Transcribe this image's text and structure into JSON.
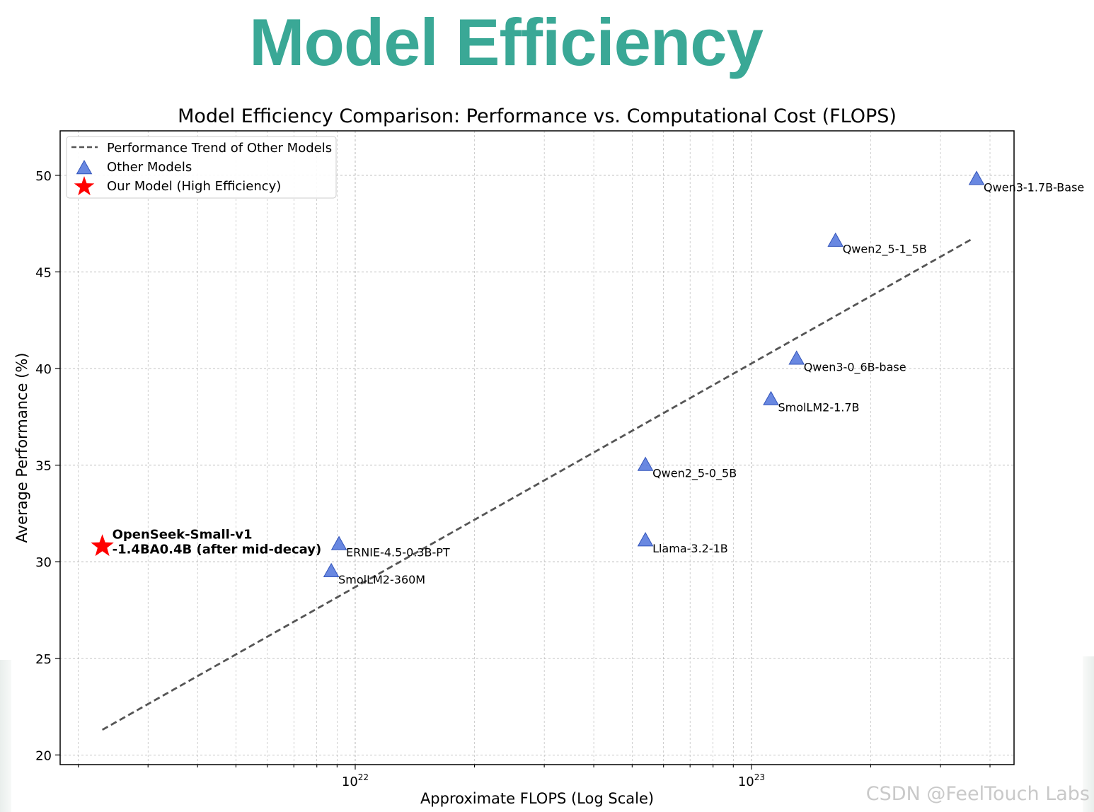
{
  "slide": {
    "title": "Model Efficiency",
    "title_color": "#3aa896"
  },
  "watermark": "CSDN @FeelTouch Labs",
  "chart_data": {
    "type": "scatter",
    "title": "Model Efficiency Comparison: Performance vs. Computational Cost (FLOPS)",
    "xlabel": "Approximate FLOPS (Log Scale)",
    "ylabel": "Average Performance (%)",
    "x_scale": "log",
    "xlim": [
      1.8e+21,
      4.6e+23
    ],
    "ylim": [
      19.5,
      52.3
    ],
    "yticks": [
      20,
      25,
      30,
      35,
      40,
      45,
      50
    ],
    "xticks_major": [
      {
        "value": 1e+22,
        "base": "10",
        "exp": "22"
      },
      {
        "value": 1e+23,
        "base": "10",
        "exp": "23"
      }
    ],
    "grid": true,
    "legend_position": "top-left",
    "legend": [
      {
        "label": "Performance Trend of Other Models",
        "marker": "dashed-line"
      },
      {
        "label": "Other Models",
        "marker": "triangle"
      },
      {
        "label": "Our Model (High Efficiency)",
        "marker": "star"
      }
    ],
    "colors": {
      "other": "#4f73dc",
      "ours": "#ff0000",
      "trend": "#555555"
    },
    "series": [
      {
        "name": "Other Models",
        "marker": "triangle",
        "points": [
          {
            "label": "Qwen3-1.7B-Base",
            "x": 3.7e+23,
            "y": 49.8
          },
          {
            "label": "Qwen2_5-1_5B",
            "x": 1.63e+23,
            "y": 46.6
          },
          {
            "label": "Qwen3-0_6B-base",
            "x": 1.3e+23,
            "y": 40.5
          },
          {
            "label": "SmolLM2-1.7B",
            "x": 1.12e+23,
            "y": 38.4
          },
          {
            "label": "Qwen2_5-0_5B",
            "x": 5.4e+22,
            "y": 35.0
          },
          {
            "label": "Llama-3.2-1B",
            "x": 5.4e+22,
            "y": 31.1
          },
          {
            "label": "ERNIE-4.5-0.3B-PT",
            "x": 9.1e+21,
            "y": 30.9
          },
          {
            "label": "SmolLM2-360M",
            "x": 8.7e+21,
            "y": 29.5
          }
        ]
      },
      {
        "name": "Our Model (High Efficiency)",
        "marker": "star",
        "points": [
          {
            "label_lines": [
              "OpenSeek-Small-v1",
              "-1.4BA0.4B (after mid-decay)"
            ],
            "x": 2.3e+21,
            "y": 30.8
          }
        ]
      }
    ],
    "trend_line": {
      "name": "Performance Trend of Other Models",
      "style": "dashed",
      "points": [
        [
          2.3e+21,
          21.3
        ],
        [
          3.6e+23,
          46.7
        ]
      ]
    }
  }
}
